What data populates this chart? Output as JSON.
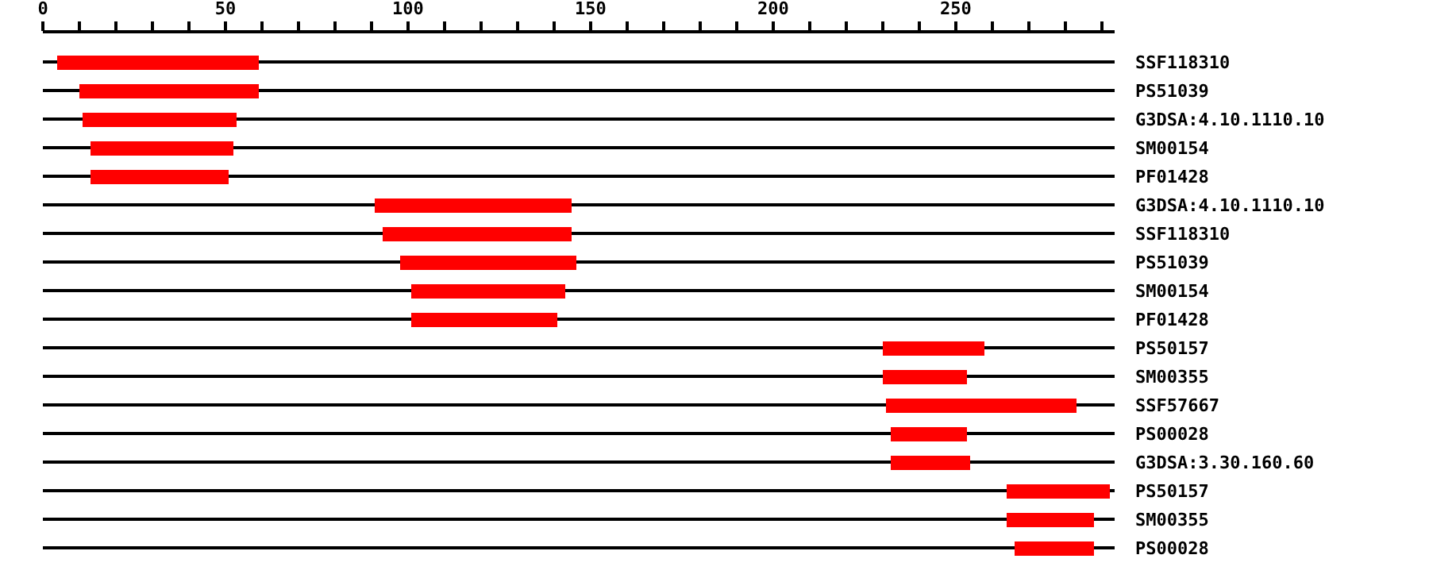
{
  "chart_data": {
    "type": "bar",
    "orientation": "horizontal",
    "categories": [
      "SSF118310",
      "PS51039",
      "G3DSA:4.10.1110.10",
      "SM00154",
      "PF01428",
      "G3DSA:4.10.1110.10",
      "SSF118310",
      "PS51039",
      "SM00154",
      "PF01428",
      "PS50157",
      "SM00355",
      "SSF57667",
      "PS00028",
      "G3DSA:3.30.160.60",
      "PS50157",
      "SM00355",
      "PS00028"
    ],
    "base": [
      4,
      10,
      11,
      13,
      13,
      91,
      93,
      98,
      101,
      101,
      230,
      230,
      231,
      232,
      232,
      264,
      264,
      266
    ],
    "values": [
      55,
      49,
      42,
      39,
      38,
      54,
      52,
      48,
      42,
      40,
      28,
      23,
      52,
      21,
      22,
      28,
      24,
      22
    ],
    "color": "#ff0000",
    "xlim": [
      0,
      293.5
    ],
    "xticks": [
      0,
      {
        "value": 10,
        "label": null
      },
      {
        "value": 20,
        "label": null
      },
      {
        "value": 30,
        "label": null
      },
      {
        "value": 40,
        "label": null
      },
      50,
      {
        "value": 60,
        "label": null
      },
      {
        "value": 70,
        "label": null
      },
      {
        "value": 80,
        "label": null
      },
      {
        "value": 90,
        "label": null
      },
      100,
      {
        "value": 110,
        "label": null
      },
      {
        "value": 120,
        "label": null
      },
      {
        "value": 130,
        "label": null
      },
      {
        "value": 140,
        "label": null
      },
      150,
      {
        "value": 160,
        "label": null
      },
      {
        "value": 170,
        "label": null
      },
      {
        "value": 180,
        "label": null
      },
      {
        "value": 190,
        "label": null
      },
      200,
      {
        "value": 210,
        "label": null
      },
      {
        "value": 220,
        "label": null
      },
      {
        "value": 230,
        "label": null
      },
      {
        "value": 240,
        "label": null
      },
      250,
      {
        "value": 260,
        "label": null
      },
      {
        "value": 270,
        "label": null
      },
      {
        "value": 280,
        "label": null
      },
      {
        "value": 290,
        "label": null
      }
    ],
    "grid": "y",
    "legend": false
  }
}
